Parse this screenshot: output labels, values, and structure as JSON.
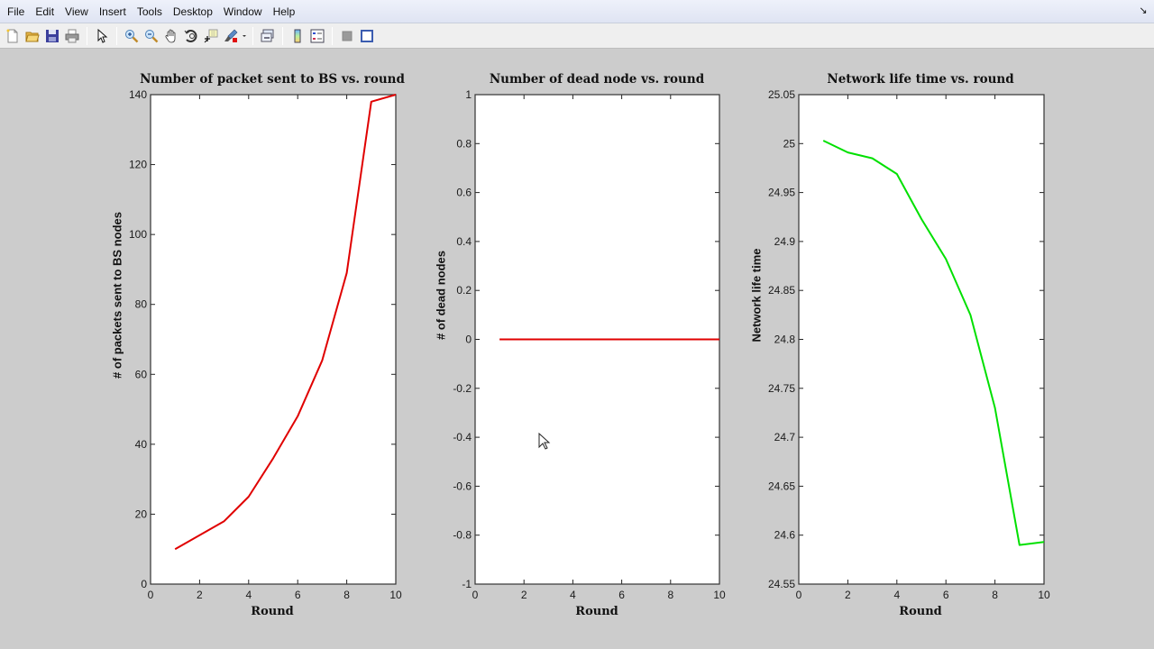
{
  "menubar": {
    "items": [
      "File",
      "Edit",
      "View",
      "Insert",
      "Tools",
      "Desktop",
      "Window",
      "Help"
    ]
  },
  "toolbar": {
    "buttons": [
      {
        "name": "new-figure",
        "icon": "new-document-icon"
      },
      {
        "name": "open-file",
        "icon": "folder-open-icon"
      },
      {
        "name": "save-figure",
        "icon": "floppy-save-icon"
      },
      {
        "name": "print-figure",
        "icon": "printer-icon"
      },
      {
        "name": "edit-plot",
        "icon": "arrow-pointer-icon"
      },
      {
        "name": "zoom-in",
        "icon": "zoom-in-icon"
      },
      {
        "name": "zoom-out",
        "icon": "zoom-out-icon"
      },
      {
        "name": "pan",
        "icon": "hand-pan-icon"
      },
      {
        "name": "rotate-3d",
        "icon": "rotate-3d-icon"
      },
      {
        "name": "data-cursor",
        "icon": "data-cursor-icon"
      },
      {
        "name": "brush",
        "icon": "brush-icon"
      },
      {
        "name": "link-plot",
        "icon": "link-plot-icon"
      },
      {
        "name": "insert-colorbar",
        "icon": "colorbar-icon"
      },
      {
        "name": "insert-legend",
        "icon": "legend-icon"
      },
      {
        "name": "hide-plot-tools",
        "icon": "hide-tools-icon"
      },
      {
        "name": "show-plot-tools",
        "icon": "show-tools-icon"
      }
    ]
  },
  "chart_data": [
    {
      "type": "line",
      "title": "Number of packet sent to BS vs. round",
      "xlabel": "Round",
      "ylabel": "# of packets sent to BS nodes",
      "xlim": [
        0,
        10
      ],
      "ylim": [
        0,
        140
      ],
      "xticks": [
        0,
        2,
        4,
        6,
        8,
        10
      ],
      "yticks": [
        0,
        20,
        40,
        60,
        80,
        100,
        120,
        140
      ],
      "grid": false,
      "x": [
        1,
        2,
        3,
        4,
        5,
        6,
        7,
        8,
        9,
        10
      ],
      "series": [
        {
          "name": "packets",
          "color": "#e00000",
          "values": [
            10,
            14,
            18,
            25,
            36,
            48,
            64,
            89,
            138,
            140
          ]
        }
      ]
    },
    {
      "type": "line",
      "title": "Number of dead node vs. round",
      "xlabel": "Round",
      "ylabel": "# of dead nodes",
      "xlim": [
        0,
        10
      ],
      "ylim": [
        -1,
        1
      ],
      "xticks": [
        0,
        2,
        4,
        6,
        8,
        10
      ],
      "yticks": [
        -1,
        -0.8,
        -0.6,
        -0.4,
        -0.2,
        0,
        0.2,
        0.4,
        0.6,
        0.8,
        1
      ],
      "grid": false,
      "x": [
        1,
        2,
        3,
        4,
        5,
        6,
        7,
        8,
        9,
        10
      ],
      "series": [
        {
          "name": "dead nodes",
          "color": "#e00000",
          "values": [
            0,
            0,
            0,
            0,
            0,
            0,
            0,
            0,
            0,
            0
          ]
        }
      ]
    },
    {
      "type": "line",
      "title": "Network life time vs. round",
      "xlabel": "Round",
      "ylabel": "Network life time",
      "xlim": [
        0,
        10
      ],
      "ylim": [
        24.55,
        25.05
      ],
      "xticks": [
        0,
        2,
        4,
        6,
        8,
        10
      ],
      "yticks": [
        24.55,
        24.6,
        24.65,
        24.7,
        24.75,
        24.8,
        24.85,
        24.9,
        24.95,
        25,
        25.05
      ],
      "grid": false,
      "x": [
        1,
        2,
        3,
        4,
        5,
        6,
        7,
        8,
        9,
        10
      ],
      "series": [
        {
          "name": "lifetime",
          "color": "#00e000",
          "values": [
            25.003,
            24.991,
            24.985,
            24.969,
            24.923,
            24.882,
            24.825,
            24.73,
            24.59,
            24.593
          ]
        }
      ]
    }
  ],
  "axes": [
    {
      "title": "Number of packet sent to BS vs. round",
      "xlabel": "Round",
      "ylabel": "# of packets sent to BS nodes",
      "ytick_labels": [
        "0",
        "20",
        "40",
        "60",
        "80",
        "100",
        "120",
        "140"
      ]
    },
    {
      "title": "Number of dead node vs. round",
      "xlabel": "Round",
      "ylabel": "# of dead nodes",
      "ytick_labels": [
        "-1",
        "-0.8",
        "-0.6",
        "-0.4",
        "-0.2",
        "0",
        "0.2",
        "0.4",
        "0.6",
        "0.8",
        "1"
      ]
    },
    {
      "title": "Network life time vs. round",
      "xlabel": "Round",
      "ylabel": "Network life time",
      "ytick_labels": [
        "24.55",
        "24.6",
        "24.65",
        "24.7",
        "24.75",
        "24.8",
        "24.85",
        "24.9",
        "24.95",
        "25",
        "25.05"
      ]
    }
  ],
  "xtick_labels": [
    "0",
    "2",
    "4",
    "6",
    "8",
    "10"
  ]
}
